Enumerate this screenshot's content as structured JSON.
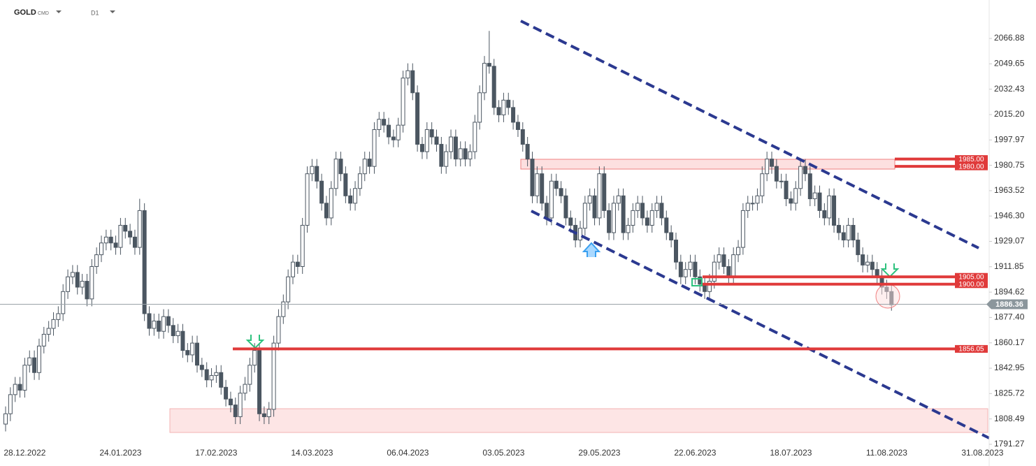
{
  "chart_data": {
    "type": "candlestick",
    "symbol": "GOLD",
    "market": "CMD",
    "timeframe": "D1",
    "categories": [
      null,
      null,
      null,
      null,
      "28.12.2022",
      null,
      null,
      null,
      null,
      null,
      null,
      null,
      null,
      null,
      null,
      null,
      null,
      null,
      null,
      null,
      null,
      null,
      null,
      null,
      "24.01.2023",
      null,
      null,
      null,
      null,
      null,
      null,
      null,
      null,
      null,
      null,
      null,
      null,
      null,
      null,
      null,
      null,
      null,
      null,
      null,
      "17.02.2023",
      null,
      null,
      null,
      null,
      null,
      null,
      null,
      null,
      null,
      null,
      null,
      null,
      null,
      null,
      null,
      null,
      null,
      null,
      null,
      "14.03.2023",
      null,
      null,
      null,
      null,
      null,
      null,
      null,
      null,
      null,
      null,
      null,
      null,
      null,
      null,
      null,
      null,
      null,
      null,
      null,
      "06.04.2023",
      null,
      null,
      null,
      null,
      null,
      null,
      null,
      null,
      null,
      null,
      null,
      null,
      null,
      null,
      null,
      null,
      null,
      null,
      null,
      "03.05.2023",
      null,
      null,
      null,
      null,
      null,
      null,
      null,
      null,
      null,
      null,
      null,
      null,
      null,
      null,
      null,
      null,
      null,
      null,
      null,
      "29.05.2023",
      null,
      null,
      null,
      null,
      null,
      null,
      null,
      null,
      null,
      null,
      null,
      null,
      null,
      null,
      null,
      null,
      null,
      null,
      null,
      "22.06.2023",
      null,
      null,
      null,
      null,
      null,
      null,
      null,
      null,
      null,
      null,
      null,
      null,
      null,
      null,
      null,
      null,
      null,
      null,
      null,
      "18.07.2023",
      null,
      null,
      null,
      null,
      null,
      null,
      null,
      null,
      null,
      null,
      null,
      null,
      null,
      null,
      null,
      null,
      null,
      null,
      null,
      "11.08.2023",
      null,
      null,
      null,
      null,
      null,
      null,
      null,
      null,
      null,
      null,
      null,
      null,
      null,
      null,
      null,
      null,
      null,
      null,
      null,
      "31.08.2023"
    ],
    "open": [
      1805,
      1812,
      1825,
      1832,
      1828,
      1845,
      1850,
      1840,
      1858,
      1866,
      1870,
      1876,
      1880,
      1895,
      1905,
      1908,
      1898,
      1902,
      1890,
      1912,
      1920,
      1928,
      1932,
      1928,
      1925,
      1940,
      1936,
      1932,
      1925,
      1950,
      1880,
      1870,
      1875,
      1868,
      1878,
      1872,
      1865,
      1868,
      1855,
      1852,
      1860,
      1845,
      1842,
      1835,
      1838,
      1840,
      1830,
      1822,
      1818,
      1810,
      1826,
      1832,
      1845,
      1855,
      1812,
      1810,
      1815,
      1860,
      1878,
      1888,
      1905,
      1915,
      1912,
      1940,
      1975,
      1980,
      1970,
      1955,
      1945,
      1965,
      1985,
      1975,
      1960,
      1955,
      1965,
      1975,
      1985,
      1980,
      2005,
      2012,
      2008,
      2000,
      1998,
      2008,
      2040,
      2045,
      2030,
      1995,
      1990,
      2005,
      2000,
      1995,
      1980,
      1990,
      2000,
      1985,
      1992,
      1985,
      1990,
      2010,
      2030,
      2050,
      2048,
      2020,
      2015,
      2025,
      2020,
      2010,
      2005,
      1995,
      1985,
      1960,
      1975,
      1955,
      1945,
      1970,
      1965,
      1960,
      1945,
      1940,
      1930,
      1938,
      1955,
      1960,
      1945,
      1975,
      1950,
      1935,
      1955,
      1960,
      1935,
      1940,
      1950,
      1955,
      1945,
      1940,
      1950,
      1955,
      1945,
      1935,
      1930,
      1915,
      1905,
      1910,
      1915,
      1905,
      1900,
      1895,
      1902,
      1915,
      1920,
      1912,
      1905,
      1920,
      1925,
      1950,
      1955,
      1955,
      1960,
      1975,
      1985,
      1980,
      1970,
      1970,
      1958,
      1955,
      1965,
      1980,
      1975,
      1958,
      1962,
      1950,
      1945,
      1960,
      1940,
      1935,
      1930,
      1940,
      1930,
      1920,
      1913,
      1915,
      1910,
      1905,
      1898,
      1895,
      null,
      null,
      null,
      null,
      null,
      null,
      null,
      null,
      null,
      null,
      null,
      null,
      null,
      null,
      null,
      null,
      null,
      null,
      null
    ],
    "high": [
      1817,
      1830,
      1837,
      1837,
      1850,
      1855,
      1855,
      1863,
      1871,
      1875,
      1881,
      1885,
      1900,
      1910,
      1913,
      1913,
      1907,
      1907,
      1917,
      1925,
      1933,
      1937,
      1937,
      1933,
      1945,
      1945,
      1941,
      1937,
      1958,
      1955,
      1885,
      1880,
      1880,
      1883,
      1883,
      1877,
      1873,
      1873,
      1860,
      1865,
      1865,
      1850,
      1847,
      1843,
      1845,
      1845,
      1835,
      1827,
      1823,
      1831,
      1837,
      1850,
      1860,
      1860,
      1817,
      1820,
      1865,
      1883,
      1893,
      1910,
      1920,
      1920,
      1945,
      1980,
      1985,
      1985,
      1975,
      1960,
      1970,
      1990,
      1990,
      1980,
      1965,
      1970,
      1980,
      1990,
      1990,
      2010,
      2017,
      2017,
      2013,
      2005,
      2013,
      2045,
      2050,
      2050,
      2035,
      2000,
      2010,
      2010,
      2005,
      2000,
      1995,
      2005,
      2005,
      1997,
      1997,
      1995,
      2015,
      2035,
      2055,
      2072,
      2053,
      2025,
      2030,
      2030,
      2025,
      2015,
      2010,
      2000,
      1990,
      1980,
      1980,
      1960,
      1975,
      1975,
      1970,
      1965,
      1950,
      1945,
      1943,
      1960,
      1965,
      1965,
      1980,
      1980,
      1955,
      1960,
      1965,
      1965,
      1945,
      1955,
      1960,
      1960,
      1950,
      1955,
      1960,
      1960,
      1950,
      1940,
      1935,
      1920,
      1915,
      1920,
      1920,
      1910,
      1905,
      1907,
      1920,
      1925,
      1925,
      1917,
      1925,
      1930,
      1955,
      1960,
      1960,
      1965,
      1980,
      1990,
      1990,
      1985,
      1975,
      1975,
      1963,
      1970,
      1985,
      1985,
      1980,
      1967,
      1967,
      1955,
      1965,
      1965,
      1945,
      1940,
      1945,
      1945,
      1935,
      1925,
      1920,
      1920,
      1915,
      1910,
      1903,
      1900,
      null,
      null,
      null,
      null,
      null,
      null,
      null,
      null,
      null,
      null,
      null,
      null,
      null,
      null,
      null,
      null,
      null,
      null,
      null
    ],
    "low": [
      1800,
      1807,
      1820,
      1823,
      1823,
      1840,
      1835,
      1835,
      1853,
      1861,
      1865,
      1871,
      1875,
      1890,
      1900,
      1893,
      1893,
      1885,
      1885,
      1907,
      1915,
      1923,
      1923,
      1920,
      1920,
      1931,
      1927,
      1920,
      1920,
      1875,
      1865,
      1865,
      1863,
      1863,
      1867,
      1860,
      1860,
      1850,
      1847,
      1847,
      1840,
      1837,
      1830,
      1830,
      1833,
      1825,
      1817,
      1813,
      1805,
      1805,
      1821,
      1827,
      1840,
      1807,
      1805,
      1805,
      1810,
      1855,
      1873,
      1883,
      1900,
      1907,
      1907,
      1935,
      1970,
      1965,
      1950,
      1940,
      1940,
      1960,
      1970,
      1955,
      1950,
      1950,
      1960,
      1970,
      1975,
      1975,
      2000,
      2003,
      1995,
      1993,
      1993,
      2003,
      2035,
      2025,
      1990,
      1985,
      1985,
      1995,
      1990,
      1975,
      1975,
      1985,
      1980,
      1980,
      1980,
      1980,
      1985,
      2005,
      2025,
      2043,
      2015,
      2010,
      2010,
      2015,
      2005,
      2000,
      1990,
      1980,
      1955,
      1955,
      1950,
      1940,
      1940,
      1960,
      1955,
      1940,
      1935,
      1925,
      1925,
      1933,
      1950,
      1940,
      1940,
      1945,
      1930,
      1930,
      1950,
      1930,
      1930,
      1935,
      1945,
      1940,
      1935,
      1935,
      1945,
      1940,
      1930,
      1925,
      1910,
      1900,
      1900,
      1905,
      1900,
      1895,
      1890,
      1890,
      1897,
      1910,
      1907,
      1900,
      1900,
      1915,
      1920,
      1945,
      1950,
      1950,
      1955,
      1970,
      1975,
      1965,
      1965,
      1953,
      1950,
      1950,
      1960,
      1970,
      1953,
      1953,
      1945,
      1940,
      1940,
      1935,
      1930,
      1925,
      1925,
      1925,
      1915,
      1908,
      1908,
      1905,
      1900,
      1893,
      1890,
      1882,
      null,
      null,
      null,
      null,
      null,
      null,
      null,
      null,
      null,
      null,
      null,
      null,
      null,
      null,
      null,
      null,
      null,
      null,
      null
    ],
    "close": [
      1812,
      1825,
      1832,
      1828,
      1845,
      1850,
      1840,
      1858,
      1866,
      1870,
      1876,
      1880,
      1895,
      1905,
      1908,
      1898,
      1902,
      1890,
      1912,
      1920,
      1928,
      1932,
      1928,
      1925,
      1940,
      1936,
      1932,
      1925,
      1950,
      1880,
      1870,
      1875,
      1868,
      1878,
      1872,
      1865,
      1868,
      1855,
      1852,
      1860,
      1845,
      1842,
      1835,
      1838,
      1840,
      1830,
      1822,
      1818,
      1810,
      1826,
      1832,
      1845,
      1855,
      1812,
      1810,
      1815,
      1860,
      1878,
      1888,
      1905,
      1915,
      1912,
      1940,
      1975,
      1980,
      1970,
      1955,
      1945,
      1965,
      1985,
      1975,
      1960,
      1955,
      1965,
      1975,
      1985,
      1980,
      2005,
      2012,
      2008,
      2000,
      1998,
      2008,
      2040,
      2045,
      2030,
      1995,
      1990,
      2005,
      2000,
      1995,
      1980,
      1990,
      2000,
      1985,
      1992,
      1985,
      1990,
      2010,
      2030,
      2050,
      2048,
      2020,
      2015,
      2025,
      2020,
      2010,
      2005,
      1995,
      1985,
      1960,
      1975,
      1955,
      1945,
      1970,
      1965,
      1960,
      1945,
      1940,
      1930,
      1938,
      1955,
      1960,
      1945,
      1975,
      1950,
      1935,
      1955,
      1960,
      1935,
      1940,
      1950,
      1955,
      1945,
      1940,
      1950,
      1955,
      1945,
      1935,
      1930,
      1915,
      1905,
      1910,
      1915,
      1905,
      1900,
      1895,
      1902,
      1915,
      1920,
      1912,
      1905,
      1920,
      1925,
      1950,
      1955,
      1955,
      1960,
      1975,
      1985,
      1980,
      1970,
      1970,
      1958,
      1955,
      1965,
      1980,
      1975,
      1958,
      1962,
      1950,
      1945,
      1960,
      1940,
      1935,
      1930,
      1940,
      1930,
      1920,
      1913,
      1915,
      1910,
      1905,
      1898,
      1895,
      1886,
      null,
      null,
      null,
      null,
      null,
      null,
      null,
      null,
      null,
      null,
      null,
      null,
      null,
      null,
      null,
      null,
      null,
      null,
      null
    ],
    "up_color": "#ffffff",
    "down_color": "#4b5661",
    "wick_color": "#4b5661",
    "ylim": [
      1784.6,
      2093.0
    ],
    "yticks": [
      2066.88,
      2049.65,
      2032.43,
      {
        "value": 2015.2,
        "label": "2015.20"
      },
      1997.97,
      1980.75,
      1963.52,
      {
        "value": 1946.3,
        "label": "1946.30"
      },
      1929.07,
      1911.85,
      1894.62,
      {
        "value": 1877.4,
        "label": "1877.40"
      },
      1860.17,
      1842.95,
      1825.72,
      1808.49,
      1791.27
    ],
    "levels": [
      {
        "value": 1985,
        "label": "1985.00"
      },
      {
        "value": 1980,
        "label": "1980.00"
      },
      {
        "value": 1905,
        "label": "1905.00"
      },
      {
        "value": 1900,
        "label": "1900.00"
      },
      {
        "value": 1856.05,
        "label": "1856.05"
      }
    ],
    "level_color": "#e03a3a",
    "last_price": {
      "value": 1886.36,
      "label": "1886.36"
    },
    "last_price_color": "#8b969c"
  }
}
